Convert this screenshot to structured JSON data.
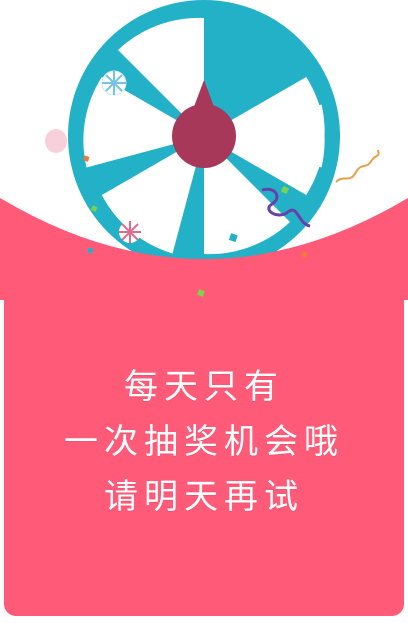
{
  "colors": {
    "card": "#FF5A78",
    "wheel_ring": "#22B1C7",
    "wheel_hub": "#A8385A",
    "text": "#ffffff"
  },
  "icons": [
    "lottery-wheel-icon",
    "candy-icon",
    "confetti-icon",
    "ribbon-icon"
  ],
  "message": {
    "line1": "每天只有",
    "line2": "一次抽奖机会哦",
    "line3": "请明天再试"
  }
}
